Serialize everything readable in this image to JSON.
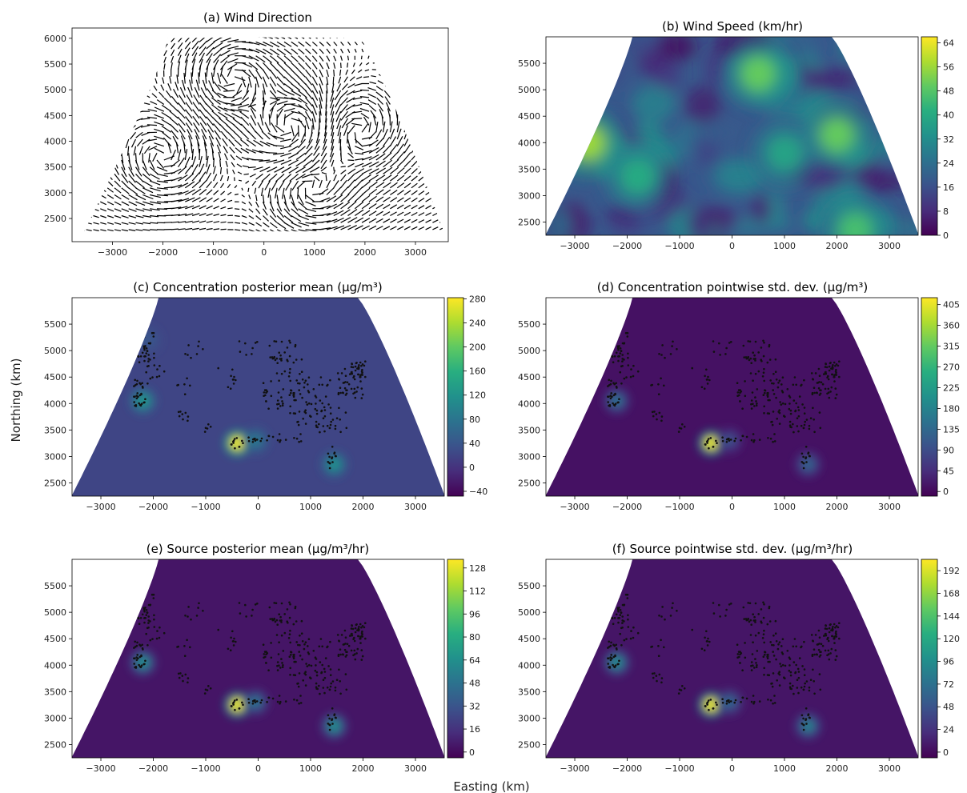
{
  "figure": {
    "xlabel": "Easting (km)",
    "ylabel": "Northing (km)"
  },
  "chart_data": [
    {
      "id": "a",
      "type": "quiver",
      "title": "(a) Wind Direction",
      "xlabel": "",
      "ylabel": "",
      "xlim": [
        -3800,
        3650
      ],
      "ylim": [
        2050,
        6200
      ],
      "xticks": [
        -3000,
        -2000,
        -1000,
        0,
        1000,
        2000,
        3000
      ],
      "yticks": [
        2500,
        3000,
        3500,
        4000,
        4500,
        5000,
        5500,
        6000
      ],
      "grid": false,
      "domain_note": "vectors on a fan-shaped lattice covering the contiguous US projection",
      "colorbar": null
    },
    {
      "id": "b",
      "type": "heatmap",
      "title": "(b) Wind Speed (km/hr)",
      "xlim": [
        -3550,
        3550
      ],
      "ylim": [
        2250,
        6000
      ],
      "xticks": [
        -3000,
        -2000,
        -1000,
        0,
        1000,
        2000,
        3000
      ],
      "yticks": [
        2500,
        3000,
        3500,
        4000,
        4500,
        5000,
        5500
      ],
      "colormap": "viridis",
      "colorbar": {
        "min": 0,
        "max": 66,
        "ticks": [
          0,
          8,
          16,
          24,
          32,
          40,
          48,
          56,
          64
        ]
      },
      "hotspots": [
        {
          "x": -2750,
          "y": 4000,
          "value": 56
        },
        {
          "x": 2000,
          "y": 4150,
          "value": 50
        },
        {
          "x": 500,
          "y": 5300,
          "value": 50
        },
        {
          "x": 2350,
          "y": 2350,
          "value": 46
        },
        {
          "x": 1000,
          "y": 3800,
          "value": 38
        },
        {
          "x": -1800,
          "y": 3350,
          "value": 40
        }
      ],
      "background_value": 18
    },
    {
      "id": "c",
      "type": "heatmap",
      "title": "(c) Concentration posterior mean (μg/m³)",
      "xlim": [
        -3550,
        3550
      ],
      "ylim": [
        2250,
        6000
      ],
      "xticks": [
        -3000,
        -2000,
        -1000,
        0,
        1000,
        2000,
        3000
      ],
      "yticks": [
        2500,
        3000,
        3500,
        4000,
        4500,
        5000,
        5500
      ],
      "colormap": "viridis",
      "colorbar": {
        "min": -48,
        "max": 282,
        "ticks": [
          -40,
          0,
          40,
          80,
          120,
          160,
          200,
          240,
          280
        ]
      },
      "hotspots": [
        {
          "x": -400,
          "y": 3250,
          "value": 270
        },
        {
          "x": -2200,
          "y": 4050,
          "value": 120
        },
        {
          "x": 1450,
          "y": 2850,
          "value": 110
        },
        {
          "x": -50,
          "y": 3300,
          "value": 80
        },
        {
          "x": -2100,
          "y": 5200,
          "value": 40
        }
      ],
      "background_value": 20,
      "scatter": "monitoring stations (black dots)"
    },
    {
      "id": "d",
      "type": "heatmap",
      "title": "(d) Concentration pointwise std. dev. (μg/m³)",
      "xlim": [
        -3550,
        3550
      ],
      "ylim": [
        2250,
        6000
      ],
      "xticks": [
        -3000,
        -2000,
        -1000,
        0,
        1000,
        2000,
        3000
      ],
      "yticks": [
        2500,
        3000,
        3500,
        4000,
        4500,
        5000,
        5500
      ],
      "colormap": "viridis",
      "colorbar": {
        "min": -10,
        "max": 420,
        "ticks": [
          0,
          45,
          90,
          135,
          180,
          225,
          270,
          315,
          360,
          405
        ]
      },
      "hotspots": [
        {
          "x": -400,
          "y": 3250,
          "value": 400
        },
        {
          "x": -2200,
          "y": 4050,
          "value": 140
        },
        {
          "x": 1450,
          "y": 2850,
          "value": 120
        },
        {
          "x": -50,
          "y": 3300,
          "value": 90
        }
      ],
      "background_value": 10,
      "scatter": "monitoring stations (black dots)"
    },
    {
      "id": "e",
      "type": "heatmap",
      "title": "(e) Source posterior mean (μg/m³/hr)",
      "xlim": [
        -3550,
        3550
      ],
      "ylim": [
        2250,
        6000
      ],
      "xticks": [
        -3000,
        -2000,
        -1000,
        0,
        1000,
        2000,
        3000
      ],
      "yticks": [
        2500,
        3000,
        3500,
        4000,
        4500,
        5000,
        5500
      ],
      "colormap": "viridis",
      "colorbar": {
        "min": -4,
        "max": 134,
        "ticks": [
          0,
          16,
          32,
          48,
          64,
          80,
          96,
          112,
          128
        ]
      },
      "hotspots": [
        {
          "x": -400,
          "y": 3250,
          "value": 128
        },
        {
          "x": -2200,
          "y": 4050,
          "value": 60
        },
        {
          "x": 1450,
          "y": 2850,
          "value": 60
        },
        {
          "x": -50,
          "y": 3300,
          "value": 45
        }
      ],
      "background_value": 4,
      "scatter": "monitoring stations (black dots)"
    },
    {
      "id": "f",
      "type": "heatmap",
      "title": "(f) Source pointwise std. dev. (μg/m³/hr)",
      "xlim": [
        -3550,
        3550
      ],
      "ylim": [
        2250,
        6000
      ],
      "xticks": [
        -3000,
        -2000,
        -1000,
        0,
        1000,
        2000,
        3000
      ],
      "yticks": [
        2500,
        3000,
        3500,
        4000,
        4500,
        5000,
        5500
      ],
      "colormap": "viridis",
      "colorbar": {
        "min": -6,
        "max": 204,
        "ticks": [
          0,
          24,
          48,
          72,
          96,
          120,
          144,
          168,
          192
        ]
      },
      "hotspots": [
        {
          "x": -400,
          "y": 3250,
          "value": 195
        },
        {
          "x": -2200,
          "y": 4050,
          "value": 90
        },
        {
          "x": 1450,
          "y": 2850,
          "value": 80
        },
        {
          "x": -50,
          "y": 3300,
          "value": 60
        }
      ],
      "background_value": 6,
      "scatter": "monitoring stations (black dots)"
    }
  ]
}
